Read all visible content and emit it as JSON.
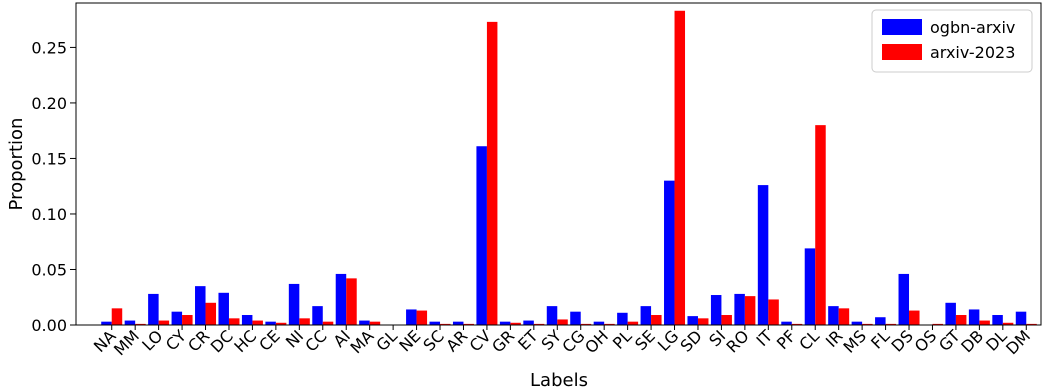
{
  "chart_data": {
    "type": "bar",
    "xlabel": "Labels",
    "ylabel": "Proportion",
    "ylim": [
      0,
      0.29
    ],
    "yticks": [
      "0.00",
      "0.05",
      "0.10",
      "0.15",
      "0.20",
      "0.25"
    ],
    "categories": [
      "NA",
      "MM",
      "LO",
      "CY",
      "CR",
      "DC",
      "HC",
      "CE",
      "NI",
      "CC",
      "AI",
      "MA",
      "GL",
      "NE",
      "SC",
      "AR",
      "CV",
      "GR",
      "ET",
      "SY",
      "CG",
      "OH",
      "PL",
      "SE",
      "LG",
      "SD",
      "SI",
      "RO",
      "IT",
      "PF",
      "CL",
      "IR",
      "MS",
      "FL",
      "DS",
      "OS",
      "GT",
      "DB",
      "DL",
      "DM"
    ],
    "series": [
      {
        "name": "ogbn-arxiv",
        "color": "#0000ff",
        "values": [
          0.003,
          0.004,
          0.028,
          0.012,
          0.035,
          0.029,
          0.009,
          0.003,
          0.037,
          0.017,
          0.046,
          0.004,
          0.0,
          0.014,
          0.003,
          0.003,
          0.161,
          0.003,
          0.004,
          0.017,
          0.012,
          0.003,
          0.011,
          0.017,
          0.13,
          0.008,
          0.027,
          0.028,
          0.126,
          0.003,
          0.069,
          0.017,
          0.003,
          0.007,
          0.046,
          0.0,
          0.02,
          0.014,
          0.009,
          0.012
        ]
      },
      {
        "name": "arxiv-2023",
        "color": "#ff0000",
        "values": [
          0.015,
          0.001,
          0.004,
          0.009,
          0.02,
          0.006,
          0.004,
          0.002,
          0.006,
          0.003,
          0.042,
          0.003,
          0.0,
          0.013,
          0.001,
          0.001,
          0.273,
          0.002,
          0.001,
          0.005,
          0.001,
          0.001,
          0.003,
          0.009,
          0.283,
          0.006,
          0.009,
          0.026,
          0.023,
          0.001,
          0.18,
          0.015,
          0.001,
          0.001,
          0.013,
          0.001,
          0.009,
          0.004,
          0.002,
          0.001
        ]
      }
    ],
    "legend_position": "top-right",
    "grid": false
  }
}
